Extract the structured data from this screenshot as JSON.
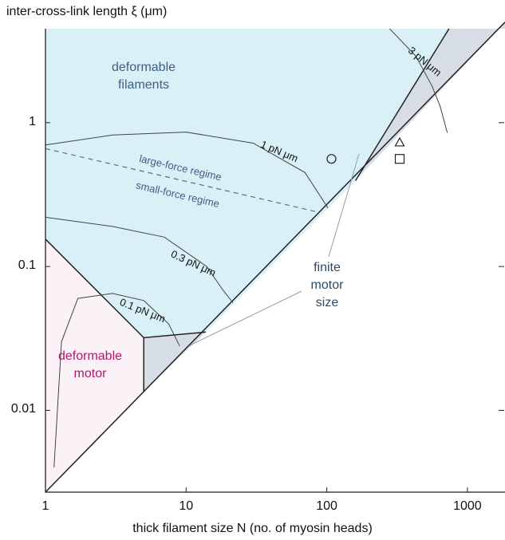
{
  "chart_data": {
    "type": "area",
    "ylabel": "inter-cross-link length ξ (μm)",
    "xlabel": "thick filament size N (no. of myosin heads)",
    "xscale": "log",
    "yscale": "log",
    "xlim": [
      1,
      1850
    ],
    "ylim": [
      0.0027,
      4.5
    ],
    "xticks": [
      {
        "value": 1,
        "label": "1"
      },
      {
        "value": 10,
        "label": "10"
      },
      {
        "value": 100,
        "label": "100"
      },
      {
        "value": 1000,
        "label": "1000"
      }
    ],
    "yticks": [
      {
        "value": 0.01,
        "label": "0.01"
      },
      {
        "value": 0.1,
        "label": "0.1"
      },
      {
        "value": 1,
        "label": "1"
      }
    ],
    "regions": [
      {
        "name": "deformable_filaments",
        "label_lines": [
          "deformable",
          "filaments"
        ],
        "fill": "#d9f0f7",
        "label_color": "#3f5f86"
      },
      {
        "name": "deformable_motor",
        "label_lines": [
          "deformable",
          "motor"
        ],
        "fill": "#faf2f6",
        "label_color": "#b5166d"
      },
      {
        "name": "finite_motor_size",
        "label_lines": [
          "finite",
          "motor",
          "size"
        ],
        "fill": "#d6dde4",
        "label_color": "#2a4a6b"
      }
    ],
    "contours": [
      {
        "label": "3 pN μm"
      },
      {
        "label": "1 pN μm"
      },
      {
        "label": "0.3 pN μm"
      },
      {
        "label": "0.1 pN μm"
      }
    ],
    "regime_boundary": {
      "upper_label": "large-force regime",
      "lower_label": "small-force regime",
      "style": "dashed"
    },
    "markers": [
      {
        "shape": "circle",
        "x": 108,
        "y": 0.56
      },
      {
        "shape": "triangle",
        "x": 330,
        "y": 0.73
      },
      {
        "shape": "square",
        "x": 330,
        "y": 0.56
      }
    ],
    "colors": {
      "filaments_fill": "#d9f0f7",
      "motor_fill": "#faf2f6",
      "finite_fill": "#d6dde4",
      "boundary": "#222222",
      "contour": "#444444",
      "pointer": "#8aa0b5"
    }
  }
}
